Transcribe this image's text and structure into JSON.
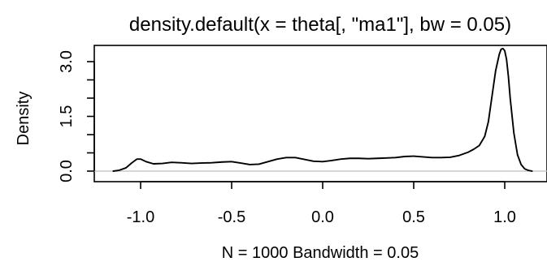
{
  "chart_data": {
    "type": "line",
    "title": "density.default(x = theta[, \"ma1\"], bw = 0.05)",
    "xlabel": "N = 1000   Bandwidth = 0.05",
    "ylabel": "Density",
    "xlim": [
      -1.15,
      1.18
    ],
    "ylim": [
      0,
      3.45
    ],
    "x_ticks": [
      -1.0,
      -0.5,
      0.0,
      0.5,
      1.0
    ],
    "x_tick_labels": [
      "-1.0",
      "-0.5",
      "0.0",
      "0.5",
      "1.0"
    ],
    "y_ticks": [
      0.0,
      0.5,
      1.0,
      1.5,
      2.0,
      2.5,
      3.0
    ],
    "y_tick_labels": [
      "0.0",
      "",
      "",
      "1.5",
      "",
      "",
      "3.0"
    ],
    "baseline": 0,
    "series": [
      {
        "x": [
          -1.15,
          -1.12,
          -1.08,
          -1.05,
          -1.02,
          -1.0,
          -0.97,
          -0.93,
          -0.88,
          -0.83,
          -0.78,
          -0.72,
          -0.67,
          -0.61,
          -0.55,
          -0.5,
          -0.45,
          -0.4,
          -0.35,
          -0.3,
          -0.25,
          -0.2,
          -0.15,
          -0.1,
          -0.05,
          0.0,
          0.05,
          0.1,
          0.15,
          0.2,
          0.25,
          0.3,
          0.35,
          0.4,
          0.45,
          0.5,
          0.55,
          0.6,
          0.65,
          0.7,
          0.75,
          0.8,
          0.83,
          0.86,
          0.89,
          0.91,
          0.93,
          0.95,
          0.97,
          0.98,
          0.99,
          1.0,
          1.01,
          1.02,
          1.03,
          1.05,
          1.07,
          1.09,
          1.11,
          1.13,
          1.15
        ],
        "y": [
          0.0,
          0.02,
          0.09,
          0.22,
          0.33,
          0.33,
          0.26,
          0.2,
          0.21,
          0.24,
          0.23,
          0.21,
          0.22,
          0.23,
          0.25,
          0.26,
          0.22,
          0.18,
          0.19,
          0.26,
          0.33,
          0.37,
          0.37,
          0.32,
          0.27,
          0.26,
          0.29,
          0.33,
          0.35,
          0.35,
          0.34,
          0.35,
          0.36,
          0.37,
          0.4,
          0.41,
          0.39,
          0.37,
          0.37,
          0.38,
          0.43,
          0.52,
          0.6,
          0.7,
          0.95,
          1.35,
          2.05,
          2.75,
          3.2,
          3.34,
          3.36,
          3.3,
          3.06,
          2.6,
          2.0,
          1.05,
          0.45,
          0.18,
          0.06,
          0.02,
          0.0
        ]
      }
    ]
  }
}
